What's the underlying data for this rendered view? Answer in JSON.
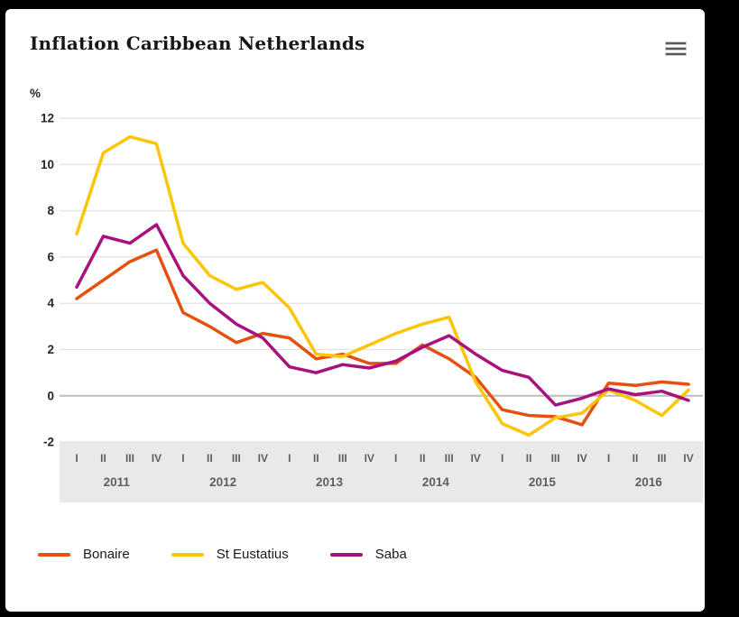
{
  "header": {
    "title": "Inflation Caribbean Netherlands",
    "menu_icon": "hamburger-menu-icon"
  },
  "chart_data": {
    "type": "line",
    "title": "Inflation Caribbean Netherlands",
    "ylabel": "%",
    "unit_label": "%",
    "ylim": [
      -2,
      12
    ],
    "y_ticks": [
      12,
      10,
      8,
      6,
      4,
      2,
      0,
      -2
    ],
    "grid": true,
    "legend_position": "bottom",
    "zero_line_emphasis": true,
    "quarter_labels": [
      "I",
      "II",
      "III",
      "IV",
      "I",
      "II",
      "III",
      "IV",
      "I",
      "II",
      "III",
      "IV",
      "I",
      "II",
      "III",
      "IV",
      "I",
      "II",
      "III",
      "IV",
      "I",
      "II",
      "III",
      "IV"
    ],
    "years": [
      "2011",
      "2012",
      "2013",
      "2014",
      "2015",
      "2016"
    ],
    "categories": [
      "2011 I",
      "2011 II",
      "2011 III",
      "2011 IV",
      "2012 I",
      "2012 II",
      "2012 III",
      "2012 IV",
      "2013 I",
      "2013 II",
      "2013 III",
      "2013 IV",
      "2014 I",
      "2014 II",
      "2014 III",
      "2014 IV",
      "2015 I",
      "2015 II",
      "2015 III",
      "2015 IV",
      "2016 I",
      "2016 II",
      "2016 III",
      "2016 IV"
    ],
    "series": [
      {
        "name": "Bonaire",
        "color": "#e6500f",
        "values": [
          4.2,
          5.0,
          5.8,
          6.3,
          3.6,
          3.0,
          2.3,
          2.7,
          2.5,
          1.6,
          1.8,
          1.4,
          1.4,
          2.2,
          1.6,
          0.8,
          -0.6,
          -0.85,
          -0.9,
          -1.25,
          0.55,
          0.45,
          0.6,
          0.5
        ]
      },
      {
        "name": "St Eustatius",
        "color": "#fdc508",
        "values": [
          7.0,
          10.5,
          11.2,
          10.9,
          6.6,
          5.2,
          4.6,
          4.9,
          3.8,
          1.8,
          1.7,
          2.2,
          2.7,
          3.1,
          3.4,
          0.6,
          -1.2,
          -1.7,
          -0.95,
          -0.75,
          0.25,
          -0.2,
          -0.85,
          0.25
        ]
      },
      {
        "name": "Saba",
        "color": "#a8117e",
        "values": [
          4.7,
          6.9,
          6.6,
          7.4,
          5.2,
          4.0,
          3.1,
          2.5,
          1.25,
          1.0,
          1.35,
          1.2,
          1.5,
          2.1,
          2.6,
          1.8,
          1.1,
          0.8,
          -0.4,
          -0.1,
          0.3,
          0.05,
          0.2,
          -0.2
        ]
      }
    ],
    "style": {
      "grid_color": "#e2e2e2",
      "zero_line_color": "#bbbbbb",
      "axis_band_color": "#e9e9e9",
      "axis_text_color": "#5f5f5f",
      "ytick_text_color": "#262626",
      "line_width": 3.5
    }
  }
}
